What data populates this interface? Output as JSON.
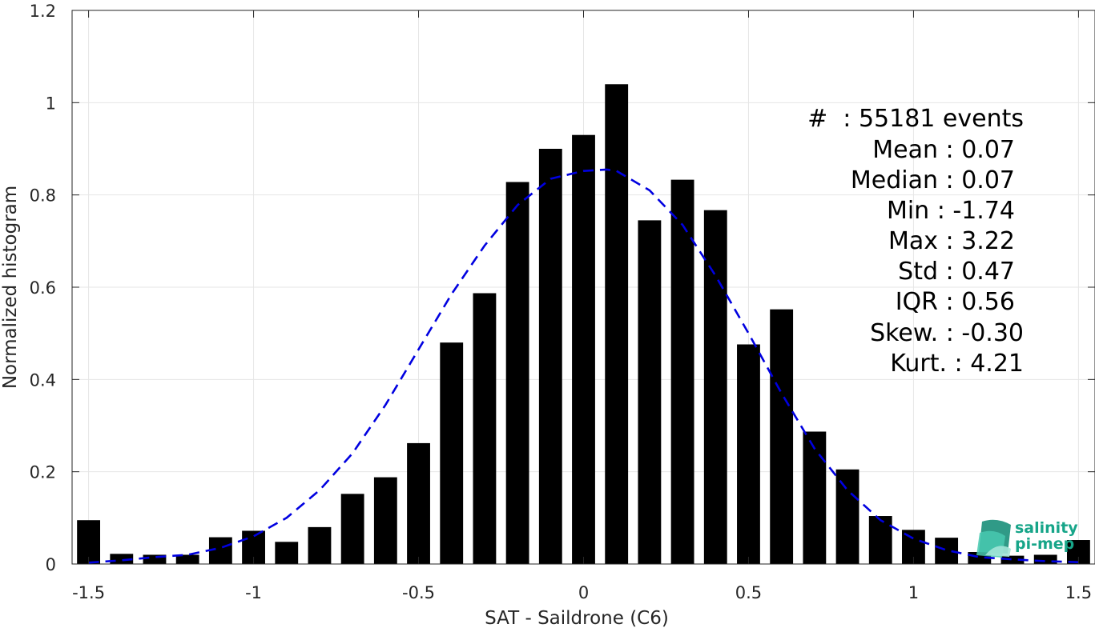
{
  "chart_data": {
    "type": "bar",
    "xlabel": "SAT - Saildrone (C6)",
    "ylabel": "Normalized histogram",
    "xlim": [
      -1.55,
      1.55
    ],
    "ylim": [
      0,
      1.2
    ],
    "xticks": [
      -1.5,
      -1,
      -0.5,
      0,
      0.5,
      1,
      1.5
    ],
    "xtick_labels": [
      "-1.5",
      "-1",
      "-0.5",
      "0",
      "0.5",
      "1",
      "1.5"
    ],
    "yticks": [
      0,
      0.2,
      0.4,
      0.6,
      0.8,
      1,
      1.2
    ],
    "ytick_labels": [
      "0",
      "0.2",
      "0.4",
      "0.6",
      "0.8",
      "1",
      "1.2"
    ],
    "grid": true,
    "bar_width": 0.07,
    "bar_color": "#000000",
    "bins": [
      {
        "x": -1.5,
        "y": 0.095
      },
      {
        "x": -1.4,
        "y": 0.022
      },
      {
        "x": -1.3,
        "y": 0.02
      },
      {
        "x": -1.2,
        "y": 0.02
      },
      {
        "x": -1.1,
        "y": 0.058
      },
      {
        "x": -1.0,
        "y": 0.072
      },
      {
        "x": -0.9,
        "y": 0.048
      },
      {
        "x": -0.8,
        "y": 0.08
      },
      {
        "x": -0.7,
        "y": 0.152
      },
      {
        "x": -0.6,
        "y": 0.188
      },
      {
        "x": -0.5,
        "y": 0.262
      },
      {
        "x": -0.4,
        "y": 0.48
      },
      {
        "x": -0.3,
        "y": 0.587
      },
      {
        "x": -0.2,
        "y": 0.828
      },
      {
        "x": -0.1,
        "y": 0.9
      },
      {
        "x": 0.0,
        "y": 0.93
      },
      {
        "x": 0.1,
        "y": 1.04
      },
      {
        "x": 0.2,
        "y": 0.745
      },
      {
        "x": 0.3,
        "y": 0.833
      },
      {
        "x": 0.4,
        "y": 0.767
      },
      {
        "x": 0.5,
        "y": 0.476
      },
      {
        "x": 0.6,
        "y": 0.552
      },
      {
        "x": 0.7,
        "y": 0.287
      },
      {
        "x": 0.8,
        "y": 0.205
      },
      {
        "x": 0.9,
        "y": 0.104
      },
      {
        "x": 1.0,
        "y": 0.074
      },
      {
        "x": 1.1,
        "y": 0.057
      },
      {
        "x": 1.2,
        "y": 0.026
      },
      {
        "x": 1.3,
        "y": 0.018
      },
      {
        "x": 1.4,
        "y": 0.02
      },
      {
        "x": 1.5,
        "y": 0.052
      }
    ],
    "fit_curve": {
      "style": "dashed",
      "color": "#0000e0",
      "x": [
        -1.5,
        -1.4,
        -1.3,
        -1.2,
        -1.1,
        -1.0,
        -0.9,
        -0.8,
        -0.7,
        -0.6,
        -0.5,
        -0.4,
        -0.3,
        -0.2,
        -0.1,
        0.0,
        0.07,
        0.1,
        0.2,
        0.3,
        0.4,
        0.5,
        0.6,
        0.7,
        0.8,
        0.9,
        1.0,
        1.1,
        1.2,
        1.3,
        1.4,
        1.5
      ],
      "y": [
        0.003,
        0.008,
        0.015,
        0.02,
        0.035,
        0.06,
        0.1,
        0.16,
        0.24,
        0.345,
        0.465,
        0.585,
        0.69,
        0.778,
        0.835,
        0.852,
        0.855,
        0.852,
        0.81,
        0.735,
        0.625,
        0.5,
        0.37,
        0.25,
        0.16,
        0.095,
        0.055,
        0.03,
        0.015,
        0.01,
        0.006,
        0.004
      ]
    },
    "stats": [
      {
        "label": "#  : 55181 events"
      },
      {
        "label": "Mean : 0.07"
      },
      {
        "label": "Median : 0.07"
      },
      {
        "label": "Min : -1.74"
      },
      {
        "label": "Max : 3.22"
      },
      {
        "label": "Std : 0.47"
      },
      {
        "label": "IQR : 0.56"
      },
      {
        "label": "Skew. : -0.30"
      },
      {
        "label": "Kurt. : 4.21"
      }
    ]
  },
  "logo": {
    "line1": "salinity",
    "line2": "pi-mep",
    "color": "#17a589"
  }
}
